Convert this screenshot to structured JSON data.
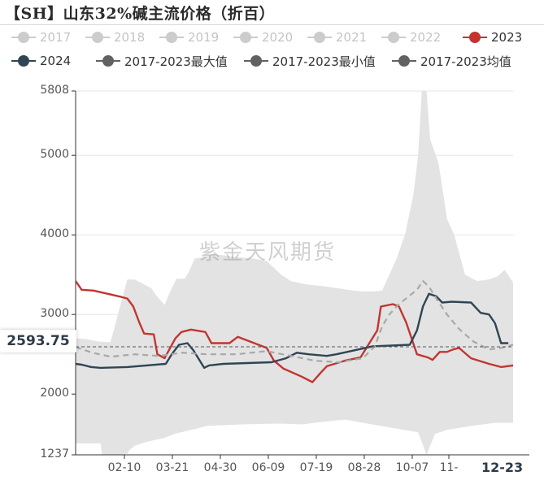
{
  "title": "【SH】山东32%碱主流价格（折百）",
  "watermark": "紫金天风期货",
  "cursor_value": "2593.75",
  "x_end_label": "12-23",
  "legend": [
    {
      "label": "2017",
      "color": "#cccccc",
      "text_color": "#c4c4c4"
    },
    {
      "label": "2018",
      "color": "#cccccc",
      "text_color": "#c4c4c4"
    },
    {
      "label": "2019",
      "color": "#cccccc",
      "text_color": "#c4c4c4"
    },
    {
      "label": "2020",
      "color": "#cccccc",
      "text_color": "#c4c4c4"
    },
    {
      "label": "2021",
      "color": "#cccccc",
      "text_color": "#c4c4c4"
    },
    {
      "label": "2022",
      "color": "#cccccc",
      "text_color": "#c4c4c4"
    },
    {
      "label": "2023",
      "color": "#c23531",
      "text_color": "#333333"
    },
    {
      "label": "2024",
      "color": "#2f4554",
      "text_color": "#333333"
    },
    {
      "label": "2017-2023最大值",
      "color": "#616161",
      "text_color": "#333333"
    },
    {
      "label": "2017-2023最小值",
      "color": "#616161",
      "text_color": "#333333"
    },
    {
      "label": "2017-2023均值",
      "color": "#616161",
      "text_color": "#333333"
    }
  ],
  "chart_data": {
    "type": "line",
    "title": "【SH】山东32%碱主流价格（折百）",
    "y_ticks": [
      1237,
      2000,
      3000,
      4000,
      5000,
      5808
    ],
    "ylim": [
      1237,
      5808
    ],
    "x_ticks": [
      "02-10",
      "03-21",
      "04-30",
      "06-09",
      "07-19",
      "08-28",
      "10-07",
      "11-",
      "12-23"
    ],
    "x_day_range": [
      1,
      365
    ],
    "grid": true,
    "series": [
      {
        "name": "2023",
        "color": "#c23531",
        "style": "solid",
        "x": [
          1,
          6,
          16,
          39,
          44,
          49,
          54,
          58,
          66,
          69,
          75,
          84,
          89,
          97,
          109,
          114,
          129,
          136,
          160,
          166,
          174,
          189,
          198,
          205,
          210,
          225,
          238,
          252,
          255,
          265,
          270,
          276,
          285,
          294,
          298,
          304,
          310,
          315,
          320,
          330,
          345,
          355,
          365
        ],
        "y": [
          3420,
          3310,
          3300,
          3220,
          3200,
          3100,
          2900,
          2760,
          2750,
          2500,
          2450,
          2700,
          2780,
          2810,
          2780,
          2640,
          2640,
          2720,
          2580,
          2420,
          2320,
          2220,
          2150,
          2270,
          2350,
          2420,
          2460,
          2800,
          3100,
          3130,
          3100,
          2900,
          2500,
          2460,
          2430,
          2530,
          2530,
          2560,
          2580,
          2450,
          2380,
          2340,
          2360
        ]
      },
      {
        "name": "2024",
        "color": "#2f4554",
        "style": "solid",
        "x": [
          1,
          6,
          14,
          22,
          44,
          76,
          81,
          87,
          94,
          99,
          108,
          112,
          124,
          164,
          176,
          185,
          195,
          210,
          218,
          248,
          279,
          285,
          290,
          295,
          301,
          306,
          314,
          330,
          338,
          345,
          350,
          355,
          361
        ],
        "y": [
          2380,
          2370,
          2340,
          2330,
          2340,
          2380,
          2500,
          2620,
          2640,
          2550,
          2330,
          2360,
          2380,
          2400,
          2450,
          2520,
          2500,
          2480,
          2500,
          2600,
          2620,
          2800,
          3100,
          3260,
          3230,
          3150,
          3160,
          3150,
          3020,
          3000,
          2890,
          2640,
          2640
        ]
      },
      {
        "name": "2017-2023均值",
        "color": "#a8a8a8",
        "style": "dashed",
        "x": [
          1,
          15,
          30,
          50,
          70,
          90,
          110,
          135,
          160,
          180,
          200,
          220,
          240,
          250,
          256,
          262,
          270,
          285,
          290,
          295,
          302,
          310,
          320,
          332,
          345,
          355,
          365
        ],
        "y": [
          2590,
          2520,
          2470,
          2500,
          2480,
          2520,
          2500,
          2500,
          2540,
          2480,
          2420,
          2400,
          2450,
          2600,
          2850,
          3000,
          3130,
          3310,
          3420,
          3350,
          3180,
          3000,
          2820,
          2660,
          2560,
          2580,
          2620
        ]
      },
      {
        "name": "2017-2023最大值",
        "color": "#e3e3e3",
        "style": "band-upper",
        "x": [
          1,
          10,
          20,
          30,
          44,
          50,
          64,
          68,
          75,
          80,
          85,
          92,
          96,
          100,
          110,
          115,
          130,
          150,
          160,
          172,
          180,
          192,
          210,
          232,
          240,
          248,
          256,
          268,
          275,
          282,
          286,
          289,
          293,
          296,
          303,
          310,
          316,
          325,
          335,
          345,
          352,
          358,
          365
        ],
        "y": [
          2700,
          2690,
          2660,
          2650,
          3440,
          3440,
          3330,
          3240,
          3120,
          3300,
          3450,
          3450,
          3560,
          3700,
          3730,
          3760,
          3730,
          3700,
          3670,
          3500,
          3420,
          3380,
          3350,
          3300,
          3290,
          3290,
          3300,
          3700,
          4000,
          4500,
          5000,
          5808,
          5800,
          5200,
          4900,
          4200,
          4000,
          3500,
          3420,
          3440,
          3480,
          3560,
          3400
        ]
      },
      {
        "name": "2017-2023最小值",
        "color": "#e3e3e3",
        "style": "band-lower",
        "x": [
          1,
          22,
          23,
          40,
          44,
          46,
          50,
          60,
          75,
          80,
          83,
          100,
          110,
          140,
          170,
          190,
          200,
          225,
          255,
          286,
          293,
          300,
          310,
          330,
          350,
          365
        ],
        "y": [
          1380,
          1380,
          1237,
          1237,
          1250,
          1300,
          1350,
          1400,
          1450,
          1480,
          1500,
          1560,
          1600,
          1620,
          1630,
          1620,
          1640,
          1680,
          1600,
          1520,
          1237,
          1500,
          1550,
          1600,
          1640,
          1640
        ]
      }
    ]
  }
}
